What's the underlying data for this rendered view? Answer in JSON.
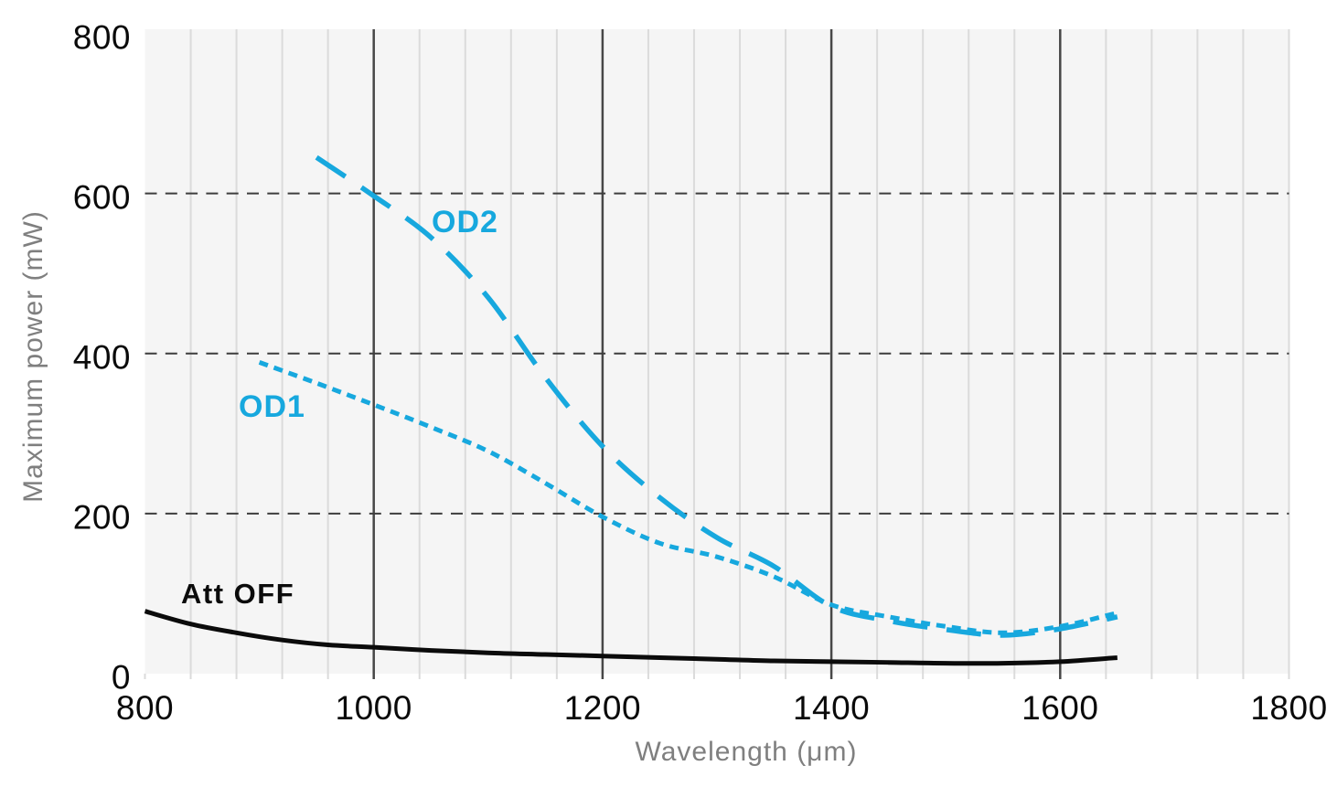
{
  "chart_data": {
    "type": "line",
    "title": "",
    "xlabel": "Wavelength (μm)",
    "ylabel": "Maximum power (mW)",
    "xlim": [
      800,
      1800
    ],
    "ylim": [
      0,
      800
    ],
    "x_ticks": [
      800,
      1000,
      1200,
      1400,
      1600,
      1800
    ],
    "y_ticks": [
      0,
      200,
      400,
      600,
      800
    ],
    "x_minor_step": 40,
    "x_major_gridlines": [
      1000,
      1200,
      1400,
      1600
    ],
    "y_dashed_gridlines": [
      200,
      400,
      600
    ],
    "grid": "vertical minor solid light, vertical major dark, horizontal dashed at 200/400/600",
    "legend_position": "inline-labels",
    "series": [
      {
        "name": "Att OFF",
        "color": "#0b0b0b",
        "line_style": "solid",
        "points": [
          [
            800,
            78
          ],
          [
            840,
            62
          ],
          [
            880,
            51
          ],
          [
            920,
            42
          ],
          [
            960,
            36
          ],
          [
            1000,
            33
          ],
          [
            1050,
            29
          ],
          [
            1100,
            26
          ],
          [
            1150,
            24
          ],
          [
            1200,
            22
          ],
          [
            1250,
            20
          ],
          [
            1300,
            18
          ],
          [
            1350,
            16
          ],
          [
            1400,
            15
          ],
          [
            1450,
            14
          ],
          [
            1500,
            13
          ],
          [
            1550,
            13
          ],
          [
            1600,
            15
          ],
          [
            1650,
            20
          ]
        ]
      },
      {
        "name": "OD1",
        "color": "#17a8de",
        "line_style": "dotted",
        "points": [
          [
            900,
            389
          ],
          [
            950,
            363
          ],
          [
            1000,
            336
          ],
          [
            1050,
            308
          ],
          [
            1100,
            278
          ],
          [
            1150,
            238
          ],
          [
            1200,
            196
          ],
          [
            1250,
            163
          ],
          [
            1300,
            146
          ],
          [
            1350,
            121
          ],
          [
            1400,
            86
          ],
          [
            1450,
            71
          ],
          [
            1500,
            59
          ],
          [
            1550,
            51
          ],
          [
            1600,
            59
          ],
          [
            1650,
            76
          ]
        ]
      },
      {
        "name": "OD2",
        "color": "#17a8de",
        "line_style": "dashed",
        "points": [
          [
            950,
            645
          ],
          [
            1000,
            597
          ],
          [
            1050,
            545
          ],
          [
            1100,
            470
          ],
          [
            1150,
            370
          ],
          [
            1200,
            284
          ],
          [
            1250,
            220
          ],
          [
            1300,
            170
          ],
          [
            1350,
            134
          ],
          [
            1400,
            84
          ],
          [
            1450,
            66
          ],
          [
            1500,
            55
          ],
          [
            1550,
            48
          ],
          [
            1600,
            56
          ],
          [
            1650,
            71
          ]
        ]
      }
    ]
  },
  "colors": {
    "plot_bg": "#f5f5f5",
    "minor_grid": "#dbdbdb",
    "major_grid": "#474747",
    "dashed_grid": "#3d3d3d",
    "tick_text": "#0a0a0a",
    "axis_title": "#7f7f7f",
    "accent_cyan": "#17a8de",
    "curve_black": "#0b0b0b"
  }
}
